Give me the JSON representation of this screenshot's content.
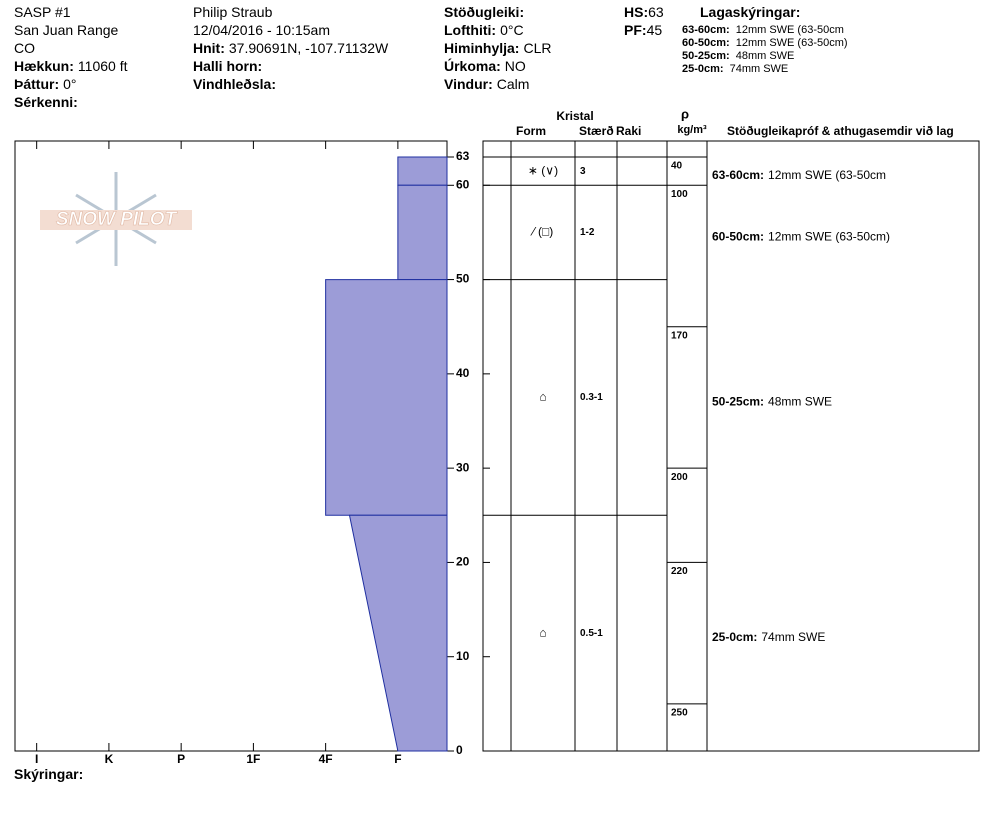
{
  "header": {
    "columns": [
      [
        {
          "value": "SASP #1"
        },
        {
          "value": "San Juan Range"
        },
        {
          "value": "CO"
        },
        {
          "label": "Hækkun:",
          "value": "11060 ft"
        },
        {
          "label": "Þáttur:",
          "value": "0°"
        },
        {
          "label": "Sérkenni:"
        }
      ],
      [
        {
          "value": "Philip Straub"
        },
        {
          "value": "12/04/2016 - 10:15am"
        },
        {
          "label": "Hnit:",
          "value": "37.90691N, -107.71132W"
        },
        {
          "label": "Halli horn:"
        },
        {
          "label": "Vindhleðsla:"
        }
      ],
      [
        {
          "label": "Stöðugleiki:"
        },
        {
          "label": "Lofthiti:",
          "value": "0°C"
        },
        {
          "label": "Himinhylja:",
          "value": "CLR"
        },
        {
          "label": "Úrkoma:",
          "value": "NO"
        },
        {
          "label": "Vindur:",
          "value": "Calm"
        }
      ],
      [
        {
          "label": "HS:",
          "value": 63
        },
        {
          "label": "PF:",
          "value": 45
        }
      ]
    ]
  },
  "legend": {
    "title": "Lagaskýringar:",
    "entries": [
      {
        "label": "63-60cm:",
        "text": "12mm SWE (63-50cm"
      },
      {
        "label": "60-50cm:",
        "text": "12mm SWE (63-50cm)"
      },
      {
        "label": "50-25cm:",
        "text": "48mm SWE"
      },
      {
        "label": "25-0cm:",
        "text": "74mm SWE"
      }
    ]
  },
  "logo": "SNOW PILOT",
  "footer": "Skýringar:",
  "table_headers": {
    "crystal": "Kristal",
    "form": "Form",
    "size": "Stærð",
    "moisture": "Raki",
    "rho": "ρ",
    "density_unit": "kg/m³",
    "comments": "Stöðugleikapróf & athugasemdir við lag"
  },
  "chart_data": {
    "type": "snow-profile",
    "ylim": [
      0,
      63
    ],
    "yticks": [
      0,
      10,
      20,
      30,
      40,
      50,
      60,
      63
    ],
    "xlim": [
      0.7,
      6.68
    ],
    "xticks": [
      {
        "value": 1,
        "label": "I"
      },
      {
        "value": 2,
        "label": "K"
      },
      {
        "value": 3,
        "label": "P"
      },
      {
        "value": 4,
        "label": "1F"
      },
      {
        "value": 5,
        "label": "4F"
      },
      {
        "value": 6,
        "label": "F"
      }
    ],
    "color": "#9c9cd7",
    "layers": [
      {
        "top": 63,
        "bottom": 60,
        "hardness_top": 6,
        "hardness_bottom": 6,
        "form": "∗ (∨)",
        "size": "3",
        "comment_label": "63-60cm:",
        "comment": "12mm SWE (63-50cm"
      },
      {
        "top": 60,
        "bottom": 50,
        "hardness_top": 6,
        "hardness_bottom": 6,
        "form": "⁄ (□)",
        "size": "1-2",
        "comment_label": "60-50cm:",
        "comment": "12mm SWE (63-50cm)"
      },
      {
        "top": 50,
        "bottom": 25,
        "hardness_top": 5,
        "hardness_bottom": 5,
        "form": "⌂",
        "size": "0.3-1",
        "comment_label": "50-25cm:",
        "comment": "48mm SWE"
      },
      {
        "top": 25,
        "bottom": 0,
        "hardness_top": 5.33,
        "hardness_bottom": 6,
        "form": "⌂",
        "size": "0.5-1",
        "comment_label": "25-0cm:",
        "comment": "74mm SWE"
      }
    ],
    "density": [
      {
        "height": 63,
        "value": 40
      },
      {
        "height": 60,
        "value": 100
      },
      {
        "height": 45,
        "value": 170
      },
      {
        "height": 30,
        "value": 200
      },
      {
        "height": 20,
        "value": 220
      },
      {
        "height": 5,
        "value": 250
      }
    ]
  }
}
